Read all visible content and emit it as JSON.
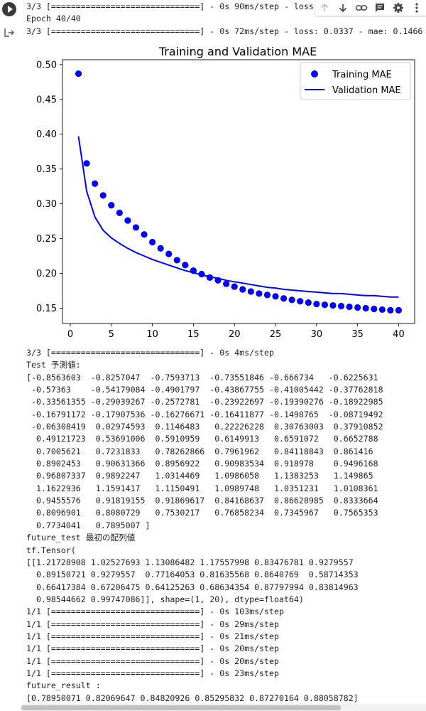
{
  "top_output": {
    "line1": "3/3 [==============================] - 0s 90ms/step - loss",
    "line2": "Epoch 40/40",
    "line3": "3/3 [==============================] - 0s 72ms/step - loss: 0.0337 - mae: 0.1466"
  },
  "toolbar": {
    "icons": [
      "arrow-up-icon",
      "arrow-down-icon",
      "link-icon",
      "comment-icon",
      "gear-icon",
      "more-icon"
    ]
  },
  "chart_data": {
    "type": "scatter",
    "title": "Training and Validation MAE",
    "xlabel": "",
    "ylabel": "",
    "xlim": [
      -0.95,
      41.95
    ],
    "ylim": [
      0.128,
      0.507
    ],
    "xticks": [
      0,
      5,
      10,
      15,
      20,
      25,
      30,
      35,
      40
    ],
    "yticks": [
      0.15,
      0.2,
      0.25,
      0.3,
      0.35,
      0.4,
      0.45,
      0.5
    ],
    "ytick_labels": [
      "0.15",
      "0.20",
      "0.25",
      "0.30",
      "0.35",
      "0.40",
      "0.45",
      "0.50"
    ],
    "legend_position": "top-right",
    "series": [
      {
        "name": "Training MAE",
        "style": "points",
        "color": "#0000ff",
        "x": [
          1,
          2,
          3,
          4,
          5,
          6,
          7,
          8,
          9,
          10,
          11,
          12,
          13,
          14,
          15,
          16,
          17,
          18,
          19,
          20,
          21,
          22,
          23,
          24,
          25,
          26,
          27,
          28,
          29,
          30,
          31,
          32,
          33,
          34,
          35,
          36,
          37,
          38,
          39,
          40
        ],
        "values": [
          0.487,
          0.358,
          0.329,
          0.312,
          0.298,
          0.287,
          0.276,
          0.266,
          0.256,
          0.245,
          0.236,
          0.228,
          0.219,
          0.212,
          0.204,
          0.199,
          0.194,
          0.19,
          0.185,
          0.181,
          0.177,
          0.174,
          0.171,
          0.169,
          0.167,
          0.164,
          0.162,
          0.16,
          0.158,
          0.156,
          0.155,
          0.154,
          0.153,
          0.152,
          0.151,
          0.15,
          0.149,
          0.148,
          0.147,
          0.147
        ]
      },
      {
        "name": "Validation MAE",
        "style": "line",
        "color": "#0000ff",
        "x": [
          1,
          2,
          3,
          4,
          5,
          6,
          7,
          8,
          9,
          10,
          11,
          12,
          13,
          14,
          15,
          16,
          17,
          18,
          19,
          20,
          21,
          22,
          23,
          24,
          25,
          26,
          27,
          28,
          29,
          30,
          31,
          32,
          33,
          34,
          35,
          36,
          37,
          38,
          39,
          40
        ],
        "values": [
          0.397,
          0.318,
          0.281,
          0.262,
          0.251,
          0.243,
          0.236,
          0.23,
          0.225,
          0.22,
          0.216,
          0.212,
          0.208,
          0.204,
          0.201,
          0.198,
          0.195,
          0.193,
          0.19,
          0.188,
          0.186,
          0.184,
          0.182,
          0.18,
          0.179,
          0.177,
          0.176,
          0.175,
          0.174,
          0.173,
          0.172,
          0.171,
          0.171,
          0.17,
          0.169,
          0.168,
          0.168,
          0.167,
          0.166,
          0.166
        ]
      }
    ]
  },
  "bottom_output": {
    "lines": [
      "3/3 [==============================] - 0s 4ms/step",
      "Test 予測値:",
      "[-0.8563603  -0.8257047  -0.7593713  -0.73551846 -0.666734   -0.6225631",
      " -0.57363    -0.54179084 -0.4901797  -0.43867755 -0.41005442 -0.37762818",
      " -0.33561355 -0.29039267 -0.2572781  -0.23922697 -0.19390276 -0.18922985",
      " -0.16791172 -0.17907536 -0.16276671 -0.16411877 -0.1498765  -0.08719492",
      " -0.06308419  0.02974593  0.1146483   0.22226228  0.30763003  0.37910852",
      "  0.49121723  0.53691006  0.5910959   0.6149913   0.6591072   0.6652788",
      "  0.7005621   0.7231833   0.78262866  0.7961962   0.84118843  0.861416",
      "  0.8902453   0.90631366  0.8956922   0.90983534  0.918978    0.9496168",
      "  0.96807337  0.9892247   1.0314469   1.0986058   1.1383253   1.149865",
      "  1.1622936   1.1591417   1.1150491   1.0989748   1.0351231   1.0108361",
      "  0.9455576   0.91819155  0.91869617  0.84168637  0.86628985  0.8333664",
      "  0.8096901   0.8080729   0.7530217   0.76858234  0.7345967   0.7565353",
      "  0.7734041   0.7895007 ]",
      "future_test 最初の配列値",
      "tf.Tensor(",
      "[[1.21728908 1.02527693 1.13086482 1.17557998 0.83476781 0.9279557",
      "  0.89150721 0.9279557  0.77164053 0.81635568 0.8640769  0.58714353",
      "  0.66417384 0.67206475 0.64125263 0.68634354 0.87797994 0.83814963",
      "  0.98544662 0.99747086]], shape=(1, 20), dtype=float64)",
      "1/1 [==============================] - 0s 103ms/step",
      "1/1 [==============================] - 0s 29ms/step",
      "1/1 [==============================] - 0s 21ms/step",
      "1/1 [==============================] - 0s 20ms/step",
      "1/1 [==============================] - 0s 20ms/step",
      "1/1 [==============================] - 0s 23ms/step",
      "future_result :",
      "[0.78950071 0.82069647 0.84820926 0.85295832 0.87270164 0.88058782]"
    ]
  }
}
